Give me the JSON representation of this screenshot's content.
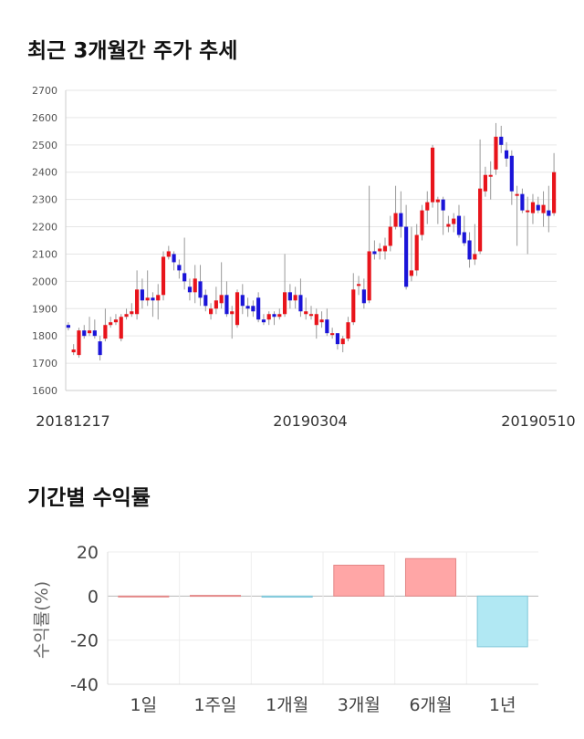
{
  "section1": {
    "title": "최근 3개월간 주가 추세"
  },
  "section2": {
    "title": "기간별 수익률"
  },
  "chart_data": [
    {
      "type": "candlestick",
      "ylim": [
        1600,
        2700
      ],
      "yticks": [
        1600,
        1700,
        1800,
        1900,
        2000,
        2100,
        2200,
        2300,
        2400,
        2500,
        2600,
        2700
      ],
      "date_labels": [
        "20181217",
        "20190304",
        "20190510"
      ],
      "grid": true,
      "colors": {
        "up": "#e8141b",
        "down": "#1a14d8",
        "wick": "#999999"
      },
      "candles": [
        [
          1840,
          1830,
          1850,
          1820
        ],
        [
          1740,
          1750,
          1770,
          1730
        ],
        [
          1730,
          1820,
          1830,
          1720
        ],
        [
          1820,
          1800,
          1840,
          1790
        ],
        [
          1810,
          1820,
          1870,
          1800
        ],
        [
          1820,
          1800,
          1860,
          1790
        ],
        [
          1780,
          1730,
          1800,
          1710
        ],
        [
          1790,
          1840,
          1900,
          1780
        ],
        [
          1840,
          1850,
          1870,
          1830
        ],
        [
          1850,
          1860,
          1880,
          1840
        ],
        [
          1790,
          1870,
          1880,
          1780
        ],
        [
          1870,
          1880,
          1900,
          1860
        ],
        [
          1880,
          1890,
          1920,
          1870
        ],
        [
          1880,
          1970,
          2040,
          1860
        ],
        [
          1970,
          1930,
          2010,
          1900
        ],
        [
          1930,
          1940,
          2040,
          1910
        ],
        [
          1940,
          1930,
          1960,
          1870
        ],
        [
          1930,
          1950,
          1990,
          1860
        ],
        [
          1950,
          2090,
          2110,
          1930
        ],
        [
          2090,
          2110,
          2130,
          2080
        ],
        [
          2100,
          2070,
          2110,
          2040
        ],
        [
          2060,
          2040,
          2080,
          2010
        ],
        [
          2030,
          2000,
          2160,
          1970
        ],
        [
          1980,
          1960,
          2010,
          1930
        ],
        [
          1960,
          2010,
          2060,
          1920
        ],
        [
          2000,
          1940,
          2060,
          1910
        ],
        [
          1950,
          1910,
          1970,
          1890
        ],
        [
          1880,
          1900,
          1920,
          1860
        ],
        [
          1900,
          1930,
          1980,
          1880
        ],
        [
          1920,
          1950,
          2070,
          1900
        ],
        [
          1950,
          1880,
          2000,
          1870
        ],
        [
          1880,
          1890,
          1910,
          1790
        ],
        [
          1840,
          1960,
          1970,
          1830
        ],
        [
          1950,
          1910,
          1990,
          1880
        ],
        [
          1910,
          1900,
          1940,
          1870
        ],
        [
          1910,
          1890,
          1930,
          1870
        ],
        [
          1940,
          1860,
          1960,
          1850
        ],
        [
          1860,
          1850,
          1880,
          1840
        ],
        [
          1860,
          1880,
          1890,
          1840
        ],
        [
          1880,
          1870,
          1890,
          1840
        ],
        [
          1870,
          1880,
          1900,
          1860
        ],
        [
          1880,
          1960,
          2100,
          1870
        ],
        [
          1960,
          1930,
          1990,
          1900
        ],
        [
          1930,
          1950,
          1980,
          1900
        ],
        [
          1950,
          1890,
          2010,
          1870
        ],
        [
          1880,
          1890,
          1940,
          1860
        ],
        [
          1880,
          1880,
          1910,
          1860
        ],
        [
          1840,
          1880,
          1900,
          1790
        ],
        [
          1850,
          1860,
          1890,
          1830
        ],
        [
          1860,
          1810,
          1900,
          1800
        ],
        [
          1810,
          1810,
          1830,
          1790
        ],
        [
          1810,
          1770,
          1810,
          1750
        ],
        [
          1770,
          1790,
          1800,
          1740
        ],
        [
          1790,
          1850,
          1870,
          1780
        ],
        [
          1850,
          1970,
          2030,
          1840
        ],
        [
          1990,
          1990,
          2020,
          1950
        ],
        [
          1970,
          1920,
          2010,
          1900
        ],
        [
          1930,
          2110,
          2350,
          1920
        ],
        [
          2110,
          2100,
          2150,
          2080
        ],
        [
          2110,
          2120,
          2140,
          2080
        ],
        [
          2110,
          2130,
          2160,
          2080
        ],
        [
          2130,
          2200,
          2240,
          2110
        ],
        [
          2200,
          2250,
          2350,
          2190
        ],
        [
          2250,
          2200,
          2330,
          2160
        ],
        [
          2200,
          1980,
          2280,
          1970
        ],
        [
          2020,
          2040,
          2200,
          2000
        ],
        [
          2040,
          2170,
          2210,
          2020
        ],
        [
          2170,
          2260,
          2280,
          2150
        ],
        [
          2260,
          2290,
          2330,
          2210
        ],
        [
          2290,
          2490,
          2500,
          2270
        ],
        [
          2290,
          2300,
          2310,
          2210
        ],
        [
          2300,
          2260,
          2310,
          2170
        ],
        [
          2200,
          2210,
          2240,
          2180
        ],
        [
          2210,
          2230,
          2250,
          2180
        ],
        [
          2240,
          2170,
          2280,
          2160
        ],
        [
          2180,
          2140,
          2240,
          2130
        ],
        [
          2150,
          2080,
          2180,
          2050
        ],
        [
          2080,
          2100,
          2210,
          2060
        ],
        [
          2110,
          2340,
          2520,
          2100
        ],
        [
          2330,
          2390,
          2420,
          2310
        ],
        [
          2390,
          2390,
          2440,
          2300
        ],
        [
          2410,
          2530,
          2580,
          2390
        ],
        [
          2530,
          2500,
          2570,
          2470
        ],
        [
          2480,
          2450,
          2510,
          2420
        ],
        [
          2460,
          2330,
          2480,
          2280
        ],
        [
          2320,
          2320,
          2350,
          2130
        ],
        [
          2320,
          2260,
          2340,
          2250
        ],
        [
          2260,
          2260,
          2310,
          2100
        ],
        [
          2250,
          2290,
          2320,
          2210
        ],
        [
          2280,
          2260,
          2310,
          2250
        ],
        [
          2250,
          2280,
          2330,
          2200
        ],
        [
          2260,
          2240,
          2350,
          2180
        ],
        [
          2250,
          2400,
          2470,
          2240
        ]
      ]
    },
    {
      "type": "bar",
      "categories": [
        "1일",
        "1주일",
        "1개월",
        "3개월",
        "6개월",
        "1년"
      ],
      "values": [
        0,
        0.3,
        -0.5,
        14,
        17,
        -23
      ],
      "ylim": [
        -40,
        20
      ],
      "yticks": [
        20,
        0,
        -20,
        -40
      ],
      "ylabel": "수익률(%)",
      "grid": true,
      "colors": {
        "positive_fill": "#ffa6a6",
        "positive_edge": "#e38787",
        "negative_fill": "#b1e8f3",
        "negative_edge": "#7fc7d9"
      }
    }
  ]
}
